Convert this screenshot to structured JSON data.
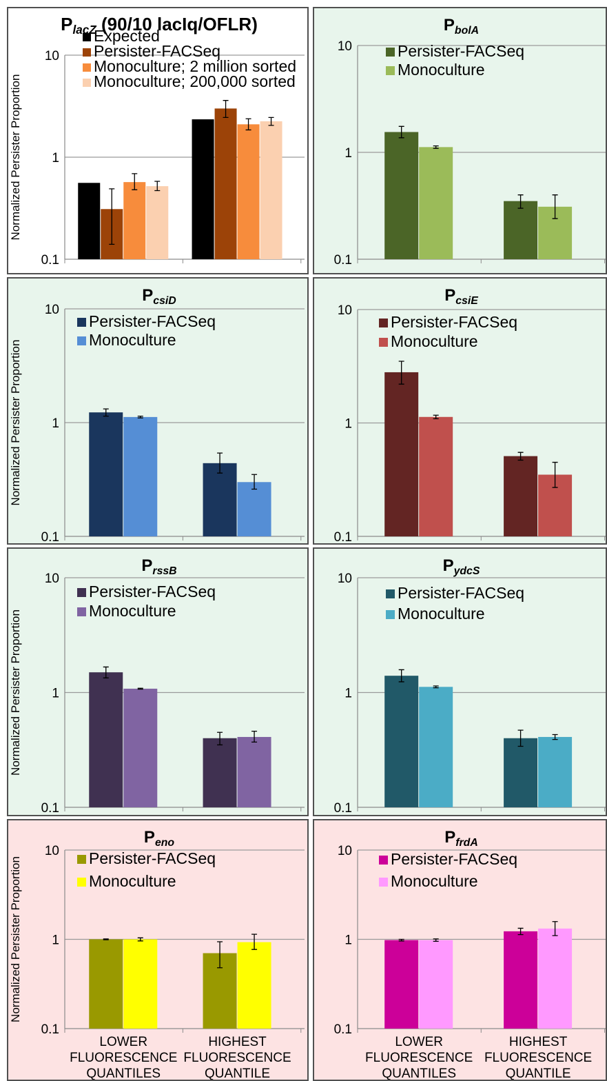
{
  "y_axis_label": "Normalized Persister Proportion",
  "y_ticks": [
    "0.1",
    "1",
    "10"
  ],
  "categories": [
    [
      "LOWER",
      "FLUORESCENCE",
      "QUANTILES"
    ],
    [
      "HIGHEST",
      "FLUORESCENCE",
      "QUANTILE"
    ]
  ],
  "chart_data": [
    {
      "type": "bar",
      "title_base": "P",
      "title_sub": "lacZ",
      "title_rest": " (90/10 lacIq/OFLR)",
      "background": "#ffffff",
      "ylim": [
        0.1,
        10
      ],
      "log_scale": true,
      "legend_position": "top",
      "categories": [
        "LOWER FLUORESCENCE QUANTILES",
        "HIGHEST FLUORESCENCE QUANTILE"
      ],
      "series": [
        {
          "name": "Expected",
          "color": "#000000",
          "values": [
            0.56,
            2.35
          ],
          "errors": [
            null,
            null
          ]
        },
        {
          "name": "Persister-FACSeq",
          "color": "#9c4308",
          "values": [
            0.31,
            3.0
          ],
          "errors": [
            [
              0.14,
              0.49
            ],
            [
              2.45,
              3.6
            ]
          ]
        },
        {
          "name": "Monoculture; 2 million sorted",
          "color": "#f78c3c",
          "values": [
            0.57,
            2.1
          ],
          "errors": [
            [
              0.48,
              0.69
            ],
            [
              1.85,
              2.38
            ]
          ]
        },
        {
          "name": "Monoculture; 200,000 sorted",
          "color": "#fbd0b0",
          "values": [
            0.52,
            2.25
          ],
          "errors": [
            [
              0.47,
              0.58
            ],
            [
              2.05,
              2.45
            ]
          ]
        }
      ]
    },
    {
      "type": "bar",
      "title_base": "P",
      "title_sub": "bolA",
      "title_rest": "",
      "background": "#e8f5ec",
      "ylim": [
        0.1,
        10
      ],
      "log_scale": true,
      "legend_position": "top",
      "categories": [
        "LOWER FLUORESCENCE QUANTILES",
        "HIGHEST FLUORESCENCE QUANTILE"
      ],
      "series": [
        {
          "name": "Persister-FACSeq",
          "color": "#4b6527",
          "values": [
            1.55,
            0.35
          ],
          "errors": [
            [
              1.37,
              1.75
            ],
            [
              0.3,
              0.4
            ]
          ]
        },
        {
          "name": "Monoculture",
          "color": "#9bbb59",
          "values": [
            1.12,
            0.31
          ],
          "errors": [
            [
              1.09,
              1.15
            ],
            [
              0.24,
              0.4
            ]
          ]
        }
      ]
    },
    {
      "type": "bar",
      "title_base": "P",
      "title_sub": "csiD",
      "title_rest": "",
      "background": "#e8f5ec",
      "ylim": [
        0.1,
        10
      ],
      "log_scale": true,
      "legend_position": "top",
      "categories": [
        "LOWER FLUORESCENCE QUANTILES",
        "HIGHEST FLUORESCENCE QUANTILE"
      ],
      "series": [
        {
          "name": "Persister-FACSeq",
          "color": "#1a365d",
          "values": [
            1.23,
            0.44
          ],
          "errors": [
            [
              1.14,
              1.32
            ],
            [
              0.36,
              0.54
            ]
          ]
        },
        {
          "name": "Monoculture",
          "color": "#558ed5",
          "values": [
            1.12,
            0.3
          ],
          "errors": [
            [
              1.1,
              1.14
            ],
            [
              0.26,
              0.35
            ]
          ]
        }
      ]
    },
    {
      "type": "bar",
      "title_base": "P",
      "title_sub": "csiE",
      "title_rest": "",
      "background": "#e8f5ec",
      "ylim": [
        0.1,
        10
      ],
      "log_scale": true,
      "legend_position": "top",
      "categories": [
        "LOWER FLUORESCENCE QUANTILES",
        "HIGHEST FLUORESCENCE QUANTILE"
      ],
      "series": [
        {
          "name": "Persister-FACSeq",
          "color": "#632523",
          "values": [
            2.8,
            0.51
          ],
          "errors": [
            [
              2.2,
              3.5
            ],
            [
              0.47,
              0.55
            ]
          ]
        },
        {
          "name": "Monoculture",
          "color": "#c0504d",
          "values": [
            1.13,
            0.35
          ],
          "errors": [
            [
              1.09,
              1.17
            ],
            [
              0.27,
              0.45
            ]
          ]
        }
      ]
    },
    {
      "type": "bar",
      "title_base": "P",
      "title_sub": "rssB",
      "title_rest": "",
      "background": "#e8f5ec",
      "ylim": [
        0.1,
        10
      ],
      "log_scale": true,
      "legend_position": "top",
      "categories": [
        "LOWER FLUORESCENCE QUANTILES",
        "HIGHEST FLUORESCENCE QUANTILE"
      ],
      "series": [
        {
          "name": "Persister-FACSeq",
          "color": "#403151",
          "values": [
            1.5,
            0.4
          ],
          "errors": [
            [
              1.34,
              1.67
            ],
            [
              0.35,
              0.45
            ]
          ]
        },
        {
          "name": "Monoculture",
          "color": "#8064a2",
          "values": [
            1.08,
            0.41
          ],
          "errors": [
            [
              1.07,
              1.09
            ],
            [
              0.37,
              0.46
            ]
          ]
        }
      ]
    },
    {
      "type": "bar",
      "title_base": "P",
      "title_sub": "ydcS",
      "title_rest": "",
      "background": "#e8f5ec",
      "ylim": [
        0.1,
        10
      ],
      "log_scale": true,
      "legend_position": "top",
      "categories": [
        "LOWER FLUORESCENCE QUANTILES",
        "HIGHEST FLUORESCENCE QUANTILE"
      ],
      "series": [
        {
          "name": "Persister-FACSeq",
          "color": "#215968",
          "values": [
            1.4,
            0.4
          ],
          "errors": [
            [
              1.24,
              1.58
            ],
            [
              0.34,
              0.47
            ]
          ]
        },
        {
          "name": "Monoculture",
          "color": "#4bacc6",
          "values": [
            1.12,
            0.41
          ],
          "errors": [
            [
              1.1,
              1.14
            ],
            [
              0.39,
              0.43
            ]
          ]
        }
      ]
    },
    {
      "type": "bar",
      "title_base": "P",
      "title_sub": "eno",
      "title_rest": "",
      "background": "#fde3e3",
      "ylim": [
        0.1,
        10
      ],
      "log_scale": true,
      "legend_position": "top",
      "categories": [
        "LOWER FLUORESCENCE QUANTILES",
        "HIGHEST FLUORESCENCE QUANTILE"
      ],
      "series": [
        {
          "name": "Persister-FACSeq",
          "color": "#999900",
          "values": [
            1.0,
            0.7
          ],
          "errors": [
            [
              0.99,
              1.01
            ],
            [
              0.48,
              0.94
            ]
          ]
        },
        {
          "name": "Monoculture",
          "color": "#ffff00",
          "values": [
            1.0,
            0.93
          ],
          "errors": [
            [
              0.96,
              1.04
            ],
            [
              0.77,
              1.14
            ]
          ]
        }
      ]
    },
    {
      "type": "bar",
      "title_base": "P",
      "title_sub": "frdA",
      "title_rest": "",
      "background": "#fde3e3",
      "ylim": [
        0.1,
        10
      ],
      "log_scale": true,
      "legend_position": "top",
      "categories": [
        "LOWER FLUORESCENCE QUANTILES",
        "HIGHEST FLUORESCENCE QUANTILE"
      ],
      "series": [
        {
          "name": "Persister-FACSeq",
          "color": "#cc0099",
          "values": [
            0.98,
            1.23
          ],
          "errors": [
            [
              0.96,
              1.0
            ],
            [
              1.13,
              1.33
            ]
          ]
        },
        {
          "name": "Monoculture",
          "color": "#ff99ff",
          "values": [
            0.98,
            1.32
          ],
          "errors": [
            [
              0.95,
              1.01
            ],
            [
              1.1,
              1.58
            ]
          ]
        }
      ]
    }
  ]
}
